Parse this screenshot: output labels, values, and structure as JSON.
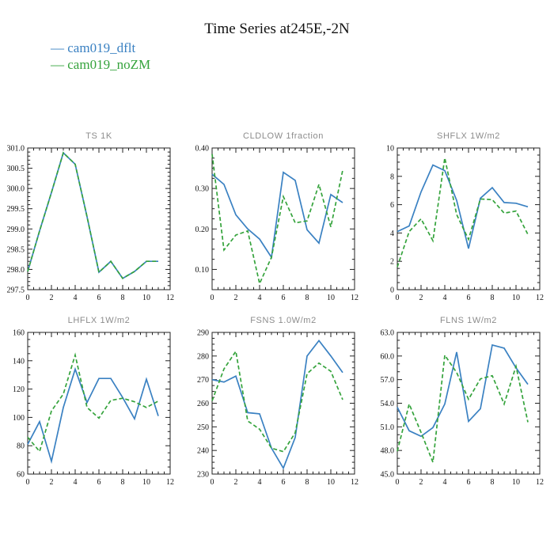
{
  "header": {
    "title": "Time Series at245E,-2N"
  },
  "legend": {
    "swatch": "— ",
    "items": [
      {
        "label": "cam019_dflt",
        "color": "#3a81c2"
      },
      {
        "label": "cam019_noZM",
        "color": "#35a33c"
      }
    ]
  },
  "colors": {
    "blue": "#3a81c2",
    "green": "#35a33c",
    "axis": "#222222",
    "subplot_title_gray": "#8c8c8c"
  },
  "chart_data": [
    {
      "type": "line",
      "key": "TS",
      "title": "TS   1K",
      "x": [
        0,
        1,
        2,
        3,
        4,
        5,
        6,
        7,
        8,
        9,
        10,
        11
      ],
      "xlim": [
        0,
        12
      ],
      "xticks": [
        0,
        2,
        4,
        6,
        8,
        10,
        12
      ],
      "xminor": 0.5,
      "ylim": [
        297.5,
        301.0
      ],
      "yminor": 0.1,
      "yticks": [
        301.0,
        300.5,
        300.0,
        299.5,
        299.0,
        298.5,
        298.0,
        297.5
      ],
      "ytick_labels": [
        "301.0",
        "300.5",
        "300.0",
        "299.5",
        "299.0",
        "298.5",
        "298.0",
        "297.5"
      ],
      "series": [
        {
          "name": "cam019_dflt",
          "style": "solid",
          "values": [
            297.95,
            298.95,
            299.9,
            300.88,
            300.6,
            299.3,
            297.93,
            298.2,
            297.78,
            297.95,
            298.2,
            298.2
          ]
        },
        {
          "name": "cam019_noZM",
          "style": "dashed",
          "values": [
            297.95,
            298.95,
            299.9,
            300.88,
            300.6,
            299.3,
            297.93,
            298.2,
            297.78,
            297.95,
            298.2,
            298.2
          ]
        }
      ]
    },
    {
      "type": "line",
      "key": "CLDLOW",
      "title": "CLDLOW   1fraction",
      "x": [
        0,
        1,
        2,
        3,
        4,
        5,
        6,
        7,
        8,
        9,
        10,
        11
      ],
      "xlim": [
        0,
        12
      ],
      "xticks": [
        0,
        2,
        4,
        6,
        8,
        10,
        12
      ],
      "xminor": 0.5,
      "ylim": [
        0.05,
        0.4
      ],
      "yminor": 0.025,
      "yticks": [
        0.4,
        0.3,
        0.2,
        0.1
      ],
      "ytick_labels": [
        "0.40",
        "0.30",
        "0.20",
        "0.10"
      ],
      "series": [
        {
          "name": "cam019_dflt",
          "style": "solid",
          "values": [
            0.335,
            0.31,
            0.235,
            0.2,
            0.175,
            0.13,
            0.34,
            0.32,
            0.198,
            0.165,
            0.285,
            0.265
          ]
        },
        {
          "name": "cam019_noZM",
          "style": "dashed",
          "values": [
            0.385,
            0.148,
            0.185,
            0.195,
            0.065,
            0.13,
            0.28,
            0.215,
            0.22,
            0.31,
            0.205,
            0.345
          ]
        }
      ]
    },
    {
      "type": "line",
      "key": "SHFLX",
      "title": "SHFLX   1W/m2",
      "x": [
        0,
        1,
        2,
        3,
        4,
        5,
        6,
        7,
        8,
        9,
        10,
        11
      ],
      "xlim": [
        0,
        12
      ],
      "xticks": [
        0,
        2,
        4,
        6,
        8,
        10,
        12
      ],
      "xminor": 0.5,
      "ylim": [
        0,
        10
      ],
      "yminor": 0.5,
      "yticks": [
        10,
        8,
        6,
        4,
        2,
        0
      ],
      "ytick_labels": [
        "10",
        "8",
        "6",
        "4",
        "2",
        "0"
      ],
      "series": [
        {
          "name": "cam019_dflt",
          "style": "solid",
          "values": [
            4.1,
            4.5,
            6.9,
            8.8,
            8.4,
            6.3,
            2.9,
            6.45,
            7.2,
            6.15,
            6.1,
            5.85
          ]
        },
        {
          "name": "cam019_noZM",
          "style": "dashed",
          "values": [
            1.6,
            4.1,
            5.0,
            3.45,
            9.3,
            5.3,
            3.55,
            6.4,
            6.35,
            5.4,
            5.55,
            3.9
          ]
        }
      ]
    },
    {
      "type": "line",
      "key": "LHFLX",
      "title": "LHFLX   1W/m2",
      "x": [
        0,
        1,
        2,
        3,
        4,
        5,
        6,
        7,
        8,
        9,
        10,
        11
      ],
      "xlim": [
        0,
        12
      ],
      "xticks": [
        0,
        2,
        4,
        6,
        8,
        10,
        12
      ],
      "xminor": 0.5,
      "ylim": [
        60,
        160
      ],
      "yminor": 5,
      "yticks": [
        160,
        140,
        120,
        100,
        80,
        60
      ],
      "ytick_labels": [
        "160",
        "140",
        "120",
        "100",
        "80",
        "60"
      ],
      "series": [
        {
          "name": "cam019_dflt",
          "style": "solid",
          "values": [
            81,
            97,
            69,
            107,
            134,
            110.5,
            127.5,
            127.5,
            114,
            99,
            127,
            101
          ]
        },
        {
          "name": "cam019_noZM",
          "style": "dashed",
          "values": [
            86,
            76,
            104.5,
            116.5,
            144,
            107,
            99.5,
            112,
            113.5,
            111,
            107,
            111.5
          ]
        }
      ]
    },
    {
      "type": "line",
      "key": "FSNS",
      "title": "FSNS   1.0W/m2",
      "x": [
        0,
        1,
        2,
        3,
        4,
        5,
        6,
        7,
        8,
        9,
        10,
        11
      ],
      "xlim": [
        0,
        12
      ],
      "xticks": [
        0,
        2,
        4,
        6,
        8,
        10,
        12
      ],
      "xminor": 0.5,
      "ylim": [
        230,
        290
      ],
      "yminor": 2.5,
      "yticks": [
        290,
        280,
        270,
        260,
        250,
        240,
        230
      ],
      "ytick_labels": [
        "290",
        "280",
        "270",
        "260",
        "250",
        "240",
        "230"
      ],
      "series": [
        {
          "name": "cam019_dflt",
          "style": "solid",
          "values": [
            270,
            269,
            271.5,
            256,
            255.5,
            241,
            232.5,
            245.5,
            280,
            286.5,
            280,
            273
          ]
        },
        {
          "name": "cam019_noZM",
          "style": "dashed",
          "values": [
            261,
            274.5,
            282,
            252.5,
            249,
            241,
            239.5,
            247.5,
            272.5,
            277,
            273.5,
            261.5
          ]
        }
      ]
    },
    {
      "type": "line",
      "key": "FLNS",
      "title": "FLNS   1W/m2",
      "x": [
        0,
        1,
        2,
        3,
        4,
        5,
        6,
        7,
        8,
        9,
        10,
        11
      ],
      "xlim": [
        0,
        12
      ],
      "xticks": [
        0,
        2,
        4,
        6,
        8,
        10,
        12
      ],
      "xminor": 0.5,
      "ylim": [
        45.0,
        63.0
      ],
      "yminor": 1.0,
      "yticks": [
        63.0,
        60.0,
        57.0,
        54.0,
        51.0,
        48.0,
        45.0
      ],
      "ytick_labels": [
        "63.0",
        "60.0",
        "57.0",
        "54.0",
        "51.0",
        "48.0",
        "45.0"
      ],
      "series": [
        {
          "name": "cam019_dflt",
          "style": "solid",
          "values": [
            53.5,
            50.5,
            49.8,
            50.9,
            53.9,
            60.5,
            51.7,
            53.3,
            61.4,
            61.0,
            58.5,
            56.4
          ]
        },
        {
          "name": "cam019_noZM",
          "style": "dashed",
          "values": [
            47.9,
            53.9,
            50.3,
            46.5,
            60.1,
            57.9,
            54.5,
            57.1,
            57.5,
            53.9,
            58.7,
            51.6
          ]
        }
      ]
    }
  ]
}
